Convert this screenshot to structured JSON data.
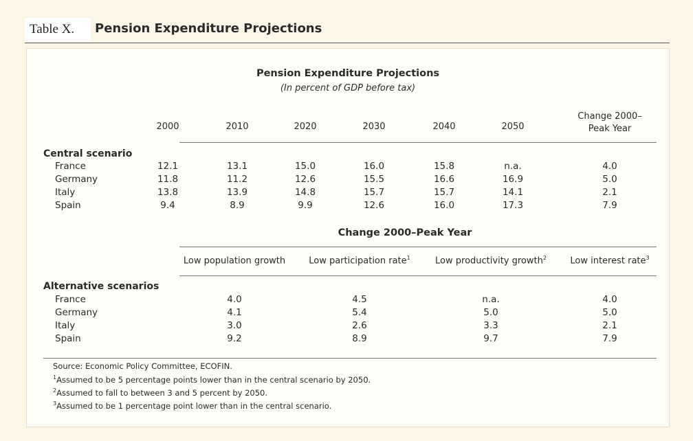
{
  "header": {
    "label": "Table X.",
    "title": "Pension Expenditure Projections"
  },
  "table": {
    "title": "Pension Expenditure Projections",
    "subtitle": "(In percent of GDP before tax)",
    "columns": [
      "2000",
      "2010",
      "2020",
      "2030",
      "2040",
      "2050"
    ],
    "change_col_line1": "Change 2000–",
    "change_col_line2": "Peak Year",
    "central": {
      "label": "Central scenario",
      "rows": [
        {
          "country": "France",
          "values": [
            "12.1",
            "13.1",
            "15.0",
            "16.0",
            "15.8",
            "n.a.",
            "4.0"
          ]
        },
        {
          "country": "Germany",
          "values": [
            "11.8",
            "11.2",
            "12.6",
            "15.5",
            "16.6",
            "16.9",
            "5.0"
          ]
        },
        {
          "country": "Italy",
          "values": [
            "13.8",
            "13.9",
            "14.8",
            "15.7",
            "15.7",
            "14.1",
            "2.1"
          ]
        },
        {
          "country": "Spain",
          "values": [
            "9.4",
            "8.9",
            "9.9",
            "12.6",
            "16.0",
            "17.3",
            "7.9"
          ]
        }
      ]
    },
    "change_title": "Change 2000–Peak Year",
    "alt_columns": [
      {
        "label": "Low population growth",
        "sup": ""
      },
      {
        "label": "Low participation rate",
        "sup": "1"
      },
      {
        "label": "Low productivity growth",
        "sup": "2"
      },
      {
        "label": "Low interest rate",
        "sup": "3"
      }
    ],
    "alternative": {
      "label": "Alternative scenarios",
      "rows": [
        {
          "country": "France",
          "values": [
            "4.0",
            "4.5",
            "n.a.",
            "4.0"
          ]
        },
        {
          "country": "Germany",
          "values": [
            "4.1",
            "5.4",
            "5.0",
            "5.0"
          ]
        },
        {
          "country": "Italy",
          "values": [
            "3.0",
            "2.6",
            "3.3",
            "2.1"
          ]
        },
        {
          "country": "Spain",
          "values": [
            "9.2",
            "8.9",
            "9.7",
            "7.9"
          ]
        }
      ]
    },
    "notes": {
      "source": "Source: Economic Policy Committee, ECOFIN.",
      "fn1": "Assumed to be 5 percentage points lower than in the central scenario by 2050.",
      "fn2": "Assumed to fall to between 3 and 5 percent by 2050.",
      "fn3": "Assumed to be 1 percentage point lower than in the central scenario."
    }
  }
}
